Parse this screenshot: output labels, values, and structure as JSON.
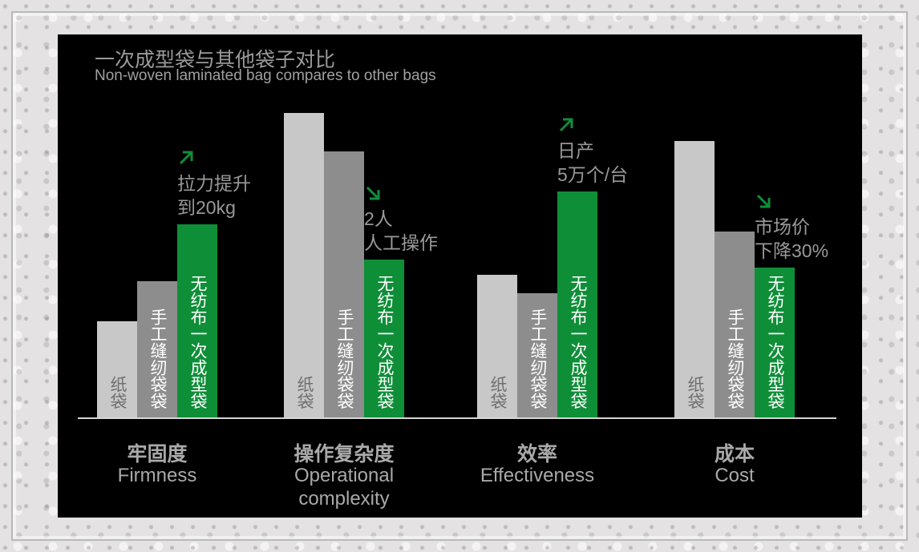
{
  "colors": {
    "paper_bag": "#c8c8c8",
    "sewn_bag": "#8d8d8d",
    "laminated_bag": "#0f8e38",
    "arrow": "#0f8e38",
    "background": "#000000"
  },
  "chart_data": {
    "type": "bar",
    "title": "一次成型袋与其他袋子对比",
    "subtitle": "Non-woven laminated bag compares to other bags",
    "categories": [
      {
        "cn": "牢固度",
        "en": [
          "Firmness"
        ]
      },
      {
        "cn": "操作复杂度",
        "en": [
          "Operational",
          "complexity"
        ]
      },
      {
        "cn": "效率",
        "en": [
          "Effectiveness"
        ]
      },
      {
        "cn": "成本",
        "en": [
          "Cost"
        ]
      }
    ],
    "series": [
      {
        "name": "纸袋",
        "values": [
          120,
          380,
          178,
          345
        ]
      },
      {
        "name": "手工缝纫袋袋",
        "values": [
          170,
          332,
          155,
          232
        ]
      },
      {
        "name": "无纺布一次成型袋",
        "values": [
          241,
          197,
          282,
          187
        ]
      }
    ],
    "ylim": [
      0,
      400
    ],
    "annotations": [
      {
        "category": 0,
        "direction": "up",
        "lines": [
          "拉力提升",
          "到20kg"
        ]
      },
      {
        "category": 1,
        "direction": "down",
        "lines": [
          "2人",
          "人工操作"
        ]
      },
      {
        "category": 2,
        "direction": "up",
        "lines": [
          "日产",
          "5万个/台"
        ]
      },
      {
        "category": 3,
        "direction": "down",
        "lines": [
          "市场价",
          "下降30%"
        ]
      }
    ]
  }
}
